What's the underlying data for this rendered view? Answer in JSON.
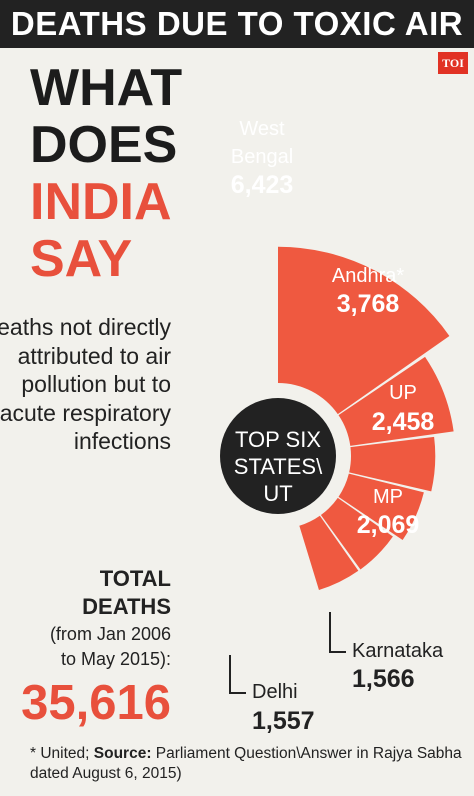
{
  "header": {
    "title": "DEATHS DUE TO TOXIC AIR",
    "badge": "TOI"
  },
  "headline": {
    "line1": "WHAT",
    "line2": "DOES",
    "line3": "INDIA",
    "line4": "SAY"
  },
  "description": "Deaths not directly attributed to air pollution but to acute respiratory infections",
  "total": {
    "label1": "TOTAL",
    "label2": "DEATHS",
    "period1": "(from Jan 2006",
    "period2": "to May 2015):",
    "value": "35,616"
  },
  "center": {
    "line1": "TOP SIX",
    "line2": "STATES\\",
    "line3": "UT"
  },
  "footnote": {
    "prefix": "* United; ",
    "source_label": "Source:",
    "text": " Parliament Question\\Answer in Rajya Sabha dated August 6, 2015)"
  },
  "colors": {
    "accent": "#ef5940",
    "dark": "#222222",
    "background": "#f2f1ec"
  },
  "chart_data": {
    "type": "pie",
    "categories": [
      "West Bengal",
      "Andhra*",
      "UP",
      "MP",
      "Karnataka",
      "Delhi"
    ],
    "values": [
      6423,
      3768,
      2458,
      2069,
      1566,
      1557
    ],
    "labels": [
      "6,423",
      "3,768",
      "2,458",
      "2,069",
      "1,566",
      "1,557"
    ]
  }
}
